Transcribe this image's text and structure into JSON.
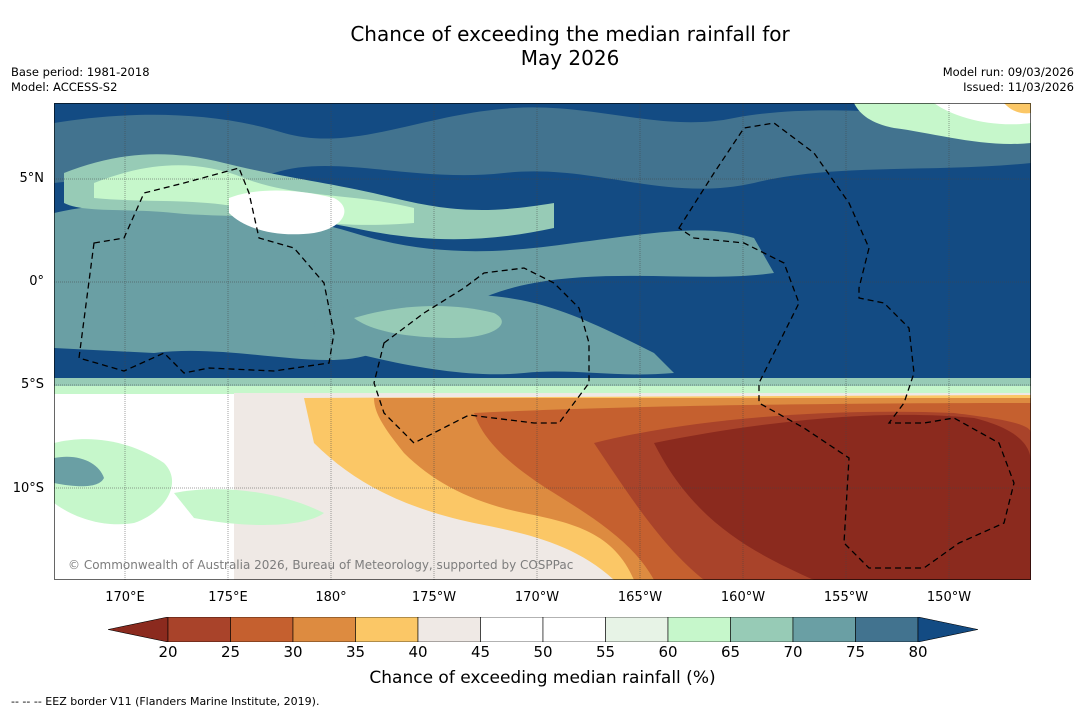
{
  "title": {
    "line1": "Chance of exceeding the median rainfall for",
    "line2": "May 2026"
  },
  "meta": {
    "base_period": "Base period: 1981-2018",
    "model": "Model: ACCESS-S2",
    "model_run": "Model run: 09/03/2026",
    "issued": "Issued: 11/03/2026"
  },
  "map": {
    "lat_labels": [
      "5°N",
      "0°",
      "5°S",
      "10°S"
    ],
    "lon_labels": [
      "170°E",
      "175°E",
      "180°",
      "175°W",
      "170°W",
      "165°W",
      "160°W",
      "155°W",
      "150°W"
    ],
    "copyright": "© Commonwealth of Australia 2026, Bureau of Meteorology, supported by COSPPac"
  },
  "colorbar": {
    "ticks": [
      "20",
      "25",
      "30",
      "35",
      "40",
      "45",
      "50",
      "55",
      "60",
      "65",
      "70",
      "75",
      "80"
    ],
    "colors": [
      "#8b2a1e",
      "#a9432a",
      "#c5602f",
      "#dd8b40",
      "#fbc766",
      "#efe9e5",
      "#ffffff",
      "#ffffff",
      "#e7f3e6",
      "#c6f7cb",
      "#97cbb6",
      "#6a9fa4",
      "#42738f",
      "#134b83"
    ],
    "label": "Chance of exceeding median rainfall (%)"
  },
  "footer": {
    "eez_legend": "--  --  -- EEZ border V11 (Flanders Marine Institute, 2019)."
  }
}
